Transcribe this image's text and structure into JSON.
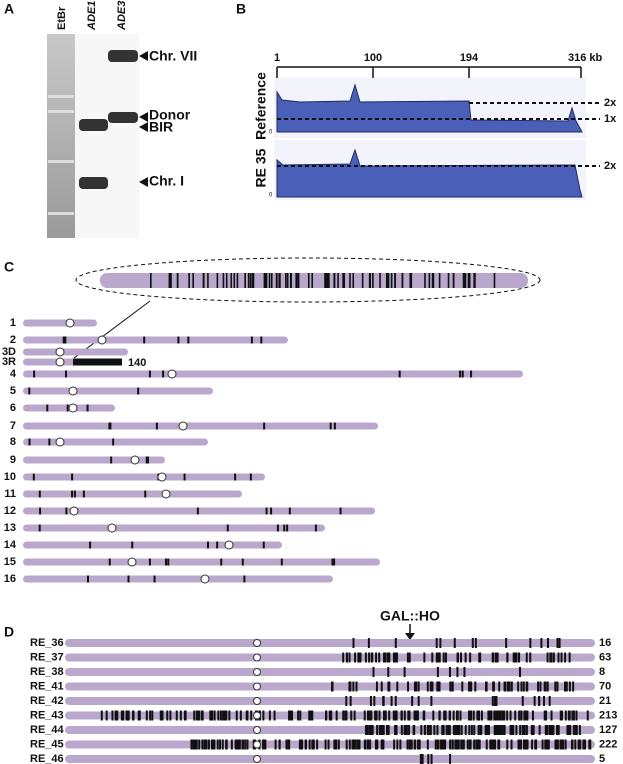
{
  "panel_a": {
    "letter": "A",
    "lanes": [
      "EtBr",
      "ADE1",
      "ADE3"
    ],
    "bands": [
      "Chr. VII",
      "Donor",
      "BIR",
      "Chr. I"
    ]
  },
  "panel_b": {
    "letter": "B",
    "ruler": [
      "1",
      "100",
      "194",
      "316 kb"
    ],
    "tracks": [
      {
        "label": "Reference",
        "zero": "0",
        "levels": [
          "2x",
          "1x"
        ]
      },
      {
        "label": "RE 35",
        "zero": "0",
        "levels": [
          "2x"
        ]
      }
    ]
  },
  "panel_c": {
    "letter": "C",
    "chromosomes": [
      "1",
      "2",
      "3D",
      "3R",
      "4",
      "5",
      "6",
      "7",
      "8",
      "9",
      "10",
      "11",
      "12",
      "13",
      "14",
      "15",
      "16"
    ],
    "count_3r": "140"
  },
  "panel_d": {
    "letter": "D",
    "marker": "GAL::HO",
    "rows": [
      {
        "label": "RE_36",
        "count": "16"
      },
      {
        "label": "RE_37",
        "count": "63"
      },
      {
        "label": "RE_38",
        "count": "8"
      },
      {
        "label": "RE_41",
        "count": "70"
      },
      {
        "label": "RE_42",
        "count": "21"
      },
      {
        "label": "RE_43",
        "count": "213"
      },
      {
        "label": "RE_44",
        "count": "127"
      },
      {
        "label": "RE_45",
        "count": "222"
      },
      {
        "label": "RE_46",
        "count": "5"
      }
    ]
  }
}
